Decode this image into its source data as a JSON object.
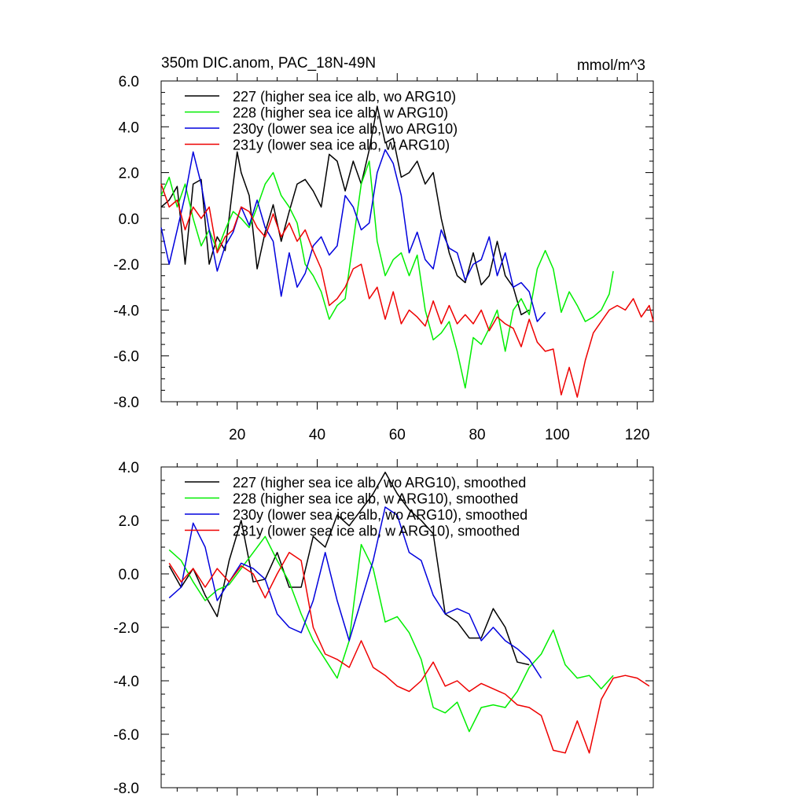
{
  "chart_data": [
    {
      "type": "line",
      "title": "350m DIC.anom, PAC_18N-49N",
      "units": "mmol/m^3",
      "xlim": [
        1,
        124
      ],
      "ylim": [
        -8,
        6
      ],
      "xticks": [
        20,
        40,
        60,
        80,
        100,
        120
      ],
      "yticks": [
        -8,
        -6,
        -4,
        -2,
        0,
        2,
        4,
        6
      ],
      "xtick_labels": [
        "20",
        "40",
        "60",
        "80",
        "100",
        "120"
      ],
      "ytick_labels": [
        "-8.0",
        "-6.0",
        "-4.0",
        "-2.0",
        "0.0",
        "2.0",
        "4.0",
        "6.0"
      ],
      "legend_position": "top-left",
      "series": [
        {
          "name": "227 (higher sea ice alb, wo ARG10)",
          "color": "#000000",
          "x": [
            1,
            3,
            5,
            7,
            9,
            11,
            13,
            15,
            17,
            19,
            20,
            21,
            23,
            25,
            27,
            29,
            31,
            33,
            35,
            37,
            39,
            41,
            43,
            45,
            47,
            49,
            51,
            53,
            55,
            57,
            59,
            61,
            63,
            65,
            67,
            69,
            71,
            73,
            75,
            77,
            79,
            81,
            83,
            85,
            87,
            89,
            91,
            93
          ],
          "y": [
            0.5,
            0.8,
            1.4,
            -2.0,
            1.5,
            1.7,
            -2.0,
            -0.8,
            -1.4,
            1.5,
            2.9,
            2.0,
            1.0,
            -2.2,
            -0.6,
            0.6,
            -1.0,
            0.3,
            1.5,
            1.7,
            1.2,
            0.5,
            2.8,
            2.5,
            1.2,
            2.5,
            1.5,
            3.0,
            4.9,
            3.3,
            3.5,
            1.8,
            2.0,
            2.5,
            1.5,
            2.0,
            0.0,
            -1.5,
            -2.5,
            -2.8,
            -1.5,
            -2.9,
            -2.5,
            -1.0,
            -2.5,
            -3.0,
            -4.2,
            -4.0
          ]
        },
        {
          "name": "228 (higher sea ice alb, w ARG10)",
          "color": "#00ee00",
          "x": [
            1,
            3,
            5,
            7,
            9,
            11,
            13,
            15,
            17,
            19,
            21,
            23,
            25,
            27,
            29,
            31,
            33,
            35,
            37,
            39,
            41,
            43,
            45,
            47,
            49,
            51,
            53,
            55,
            57,
            59,
            61,
            63,
            65,
            67,
            69,
            71,
            73,
            75,
            77,
            79,
            81,
            83,
            85,
            87,
            89,
            91,
            93,
            95,
            97,
            99,
            101,
            103,
            105,
            107,
            109,
            111,
            113,
            114
          ],
          "y": [
            1.0,
            1.8,
            0.5,
            1.5,
            0.0,
            -1.2,
            -0.5,
            -1.4,
            -0.5,
            0.3,
            0.0,
            -0.4,
            0.5,
            1.5,
            2.0,
            1.0,
            0.5,
            -0.2,
            -2.0,
            -2.5,
            -3.2,
            -4.4,
            -3.8,
            -3.5,
            -1.0,
            1.5,
            2.5,
            -1.0,
            -2.5,
            -1.8,
            -1.5,
            -2.5,
            -1.6,
            -4.0,
            -5.3,
            -5.0,
            -4.5,
            -5.8,
            -7.4,
            -5.2,
            -5.5,
            -4.8,
            -4.0,
            -5.8,
            -4.0,
            -3.5,
            -4.2,
            -2.2,
            -1.4,
            -2.2,
            -4.1,
            -3.2,
            -3.8,
            -4.5,
            -4.3,
            -4.0,
            -3.3,
            -2.3
          ]
        },
        {
          "name": "230y (lower sea ice alb, wo ARG10)",
          "color": "#0000dd",
          "x": [
            1,
            3,
            5,
            7,
            9,
            11,
            13,
            15,
            17,
            19,
            21,
            23,
            25,
            27,
            29,
            31,
            33,
            35,
            37,
            39,
            41,
            43,
            45,
            47,
            49,
            51,
            53,
            55,
            57,
            59,
            61,
            63,
            65,
            67,
            69,
            71,
            73,
            75,
            77,
            79,
            81,
            83,
            85,
            87,
            89,
            91,
            93,
            95,
            97
          ],
          "y": [
            -0.4,
            -2.0,
            -0.5,
            1.0,
            2.9,
            1.5,
            -0.5,
            -2.3,
            -1.2,
            -0.6,
            0.5,
            -0.3,
            0.8,
            -0.4,
            -1.0,
            -3.4,
            -1.5,
            -3.0,
            -2.4,
            -1.2,
            -0.8,
            -1.6,
            -1.2,
            1.0,
            0.5,
            -0.5,
            -0.2,
            2.0,
            3.0,
            2.4,
            1.0,
            -1.5,
            -0.6,
            -1.8,
            -2.2,
            -0.5,
            -1.3,
            -1.5,
            -2.7,
            -2.0,
            -1.8,
            -0.8,
            -2.5,
            -1.5,
            -3.0,
            -2.8,
            -3.2,
            -4.5,
            -4.1
          ]
        },
        {
          "name": "231y (lower sea ice alb, w ARG10)",
          "color": "#ee0000",
          "x": [
            1,
            3,
            5,
            7,
            9,
            11,
            13,
            15,
            17,
            19,
            21,
            23,
            25,
            27,
            29,
            31,
            33,
            35,
            37,
            39,
            41,
            43,
            45,
            47,
            49,
            51,
            53,
            55,
            57,
            59,
            61,
            63,
            65,
            67,
            69,
            71,
            73,
            75,
            77,
            79,
            81,
            83,
            85,
            87,
            89,
            91,
            93,
            95,
            97,
            99,
            101,
            103,
            105,
            107,
            109,
            111,
            113,
            115,
            117,
            119,
            121,
            123,
            124
          ],
          "y": [
            1.5,
            0.5,
            0.8,
            -0.5,
            0.5,
            0.0,
            0.5,
            -1.5,
            -0.8,
            -0.5,
            0.5,
            0.3,
            -0.4,
            -0.8,
            0.2,
            -0.8,
            -0.2,
            -1.0,
            -0.5,
            -1.4,
            -2.2,
            -3.8,
            -3.5,
            -3.0,
            -2.2,
            -2.0,
            -3.5,
            -3.0,
            -4.4,
            -3.2,
            -4.6,
            -4.0,
            -4.3,
            -4.7,
            -3.6,
            -4.6,
            -3.8,
            -4.6,
            -4.2,
            -4.6,
            -4.0,
            -4.9,
            -4.3,
            -4.6,
            -4.8,
            -5.6,
            -4.4,
            -5.4,
            -5.8,
            -5.7,
            -7.7,
            -6.5,
            -7.8,
            -6.2,
            -5.0,
            -4.5,
            -4.0,
            -3.8,
            -4.0,
            -3.5,
            -4.3,
            -3.8,
            -4.5
          ]
        }
      ]
    },
    {
      "type": "line",
      "title": "",
      "units": "",
      "xlim": [
        1,
        124
      ],
      "ylim": [
        -8,
        4
      ],
      "xticks": [
        20,
        40,
        60,
        80,
        100,
        120
      ],
      "yticks": [
        -8,
        -6,
        -4,
        -2,
        0,
        2,
        4
      ],
      "xtick_labels": [],
      "ytick_labels": [
        "-8.0",
        "-6.0",
        "-4.0",
        "-2.0",
        "0.0",
        "2.0",
        "4.0"
      ],
      "legend_position": "top-left",
      "series": [
        {
          "name": "227 (higher sea ice alb, wo ARG10), smoothed",
          "color": "#000000",
          "x": [
            3,
            6,
            9,
            12,
            15,
            18,
            21,
            24,
            27,
            30,
            33,
            36,
            39,
            42,
            45,
            48,
            51,
            54,
            57,
            60,
            63,
            66,
            69,
            72,
            75,
            78,
            81,
            84,
            87,
            90,
            93
          ],
          "y": [
            0.3,
            -0.5,
            0.2,
            -0.8,
            -1.6,
            0.5,
            2.0,
            -0.3,
            -0.2,
            0.8,
            -0.5,
            -0.5,
            1.4,
            1.0,
            2.2,
            1.8,
            2.4,
            3.0,
            3.8,
            3.0,
            2.4,
            2.0,
            1.5,
            -1.5,
            -1.8,
            -2.4,
            -2.4,
            -1.3,
            -2.0,
            -3.3,
            -3.4
          ]
        },
        {
          "name": "228 (higher sea ice alb, w ARG10), smoothed",
          "color": "#00ee00",
          "x": [
            3,
            6,
            9,
            12,
            15,
            18,
            21,
            24,
            27,
            30,
            33,
            36,
            39,
            42,
            45,
            48,
            51,
            54,
            57,
            60,
            63,
            66,
            69,
            72,
            75,
            78,
            81,
            84,
            87,
            90,
            93,
            96,
            99,
            102,
            105,
            108,
            111,
            114
          ],
          "y": [
            0.9,
            0.5,
            -0.3,
            -1.0,
            -0.6,
            -0.4,
            0.2,
            0.8,
            1.4,
            0.5,
            -0.3,
            -1.5,
            -2.5,
            -3.2,
            -3.9,
            -2.5,
            1.1,
            0.2,
            -1.8,
            -1.6,
            -2.2,
            -3.2,
            -5.0,
            -5.2,
            -4.8,
            -5.9,
            -5.0,
            -4.9,
            -5.0,
            -4.4,
            -3.5,
            -3.0,
            -2.1,
            -3.4,
            -3.9,
            -3.8,
            -4.3,
            -3.8
          ]
        },
        {
          "name": "230y (lower sea ice alb, wo ARG10), smoothed",
          "color": "#0000dd",
          "x": [
            3,
            6,
            9,
            12,
            15,
            18,
            21,
            24,
            27,
            30,
            33,
            36,
            39,
            42,
            45,
            48,
            51,
            54,
            57,
            60,
            63,
            66,
            69,
            72,
            75,
            78,
            81,
            84,
            87,
            90,
            93,
            96
          ],
          "y": [
            -0.9,
            -0.5,
            1.9,
            1.0,
            -1.0,
            -0.3,
            0.4,
            0.2,
            -0.2,
            -1.5,
            -2.0,
            -2.2,
            -1.0,
            0.8,
            -1.0,
            -2.5,
            -1.0,
            0.5,
            2.5,
            2.2,
            0.8,
            0.5,
            -0.8,
            -1.5,
            -1.3,
            -1.5,
            -2.5,
            -2.0,
            -2.5,
            -2.8,
            -3.2,
            -3.9
          ]
        },
        {
          "name": "231y (lower sea ice alb, w ARG10), smoothed",
          "color": "#ee0000",
          "x": [
            3,
            6,
            9,
            12,
            15,
            18,
            21,
            24,
            27,
            30,
            33,
            36,
            39,
            42,
            45,
            48,
            51,
            54,
            57,
            60,
            63,
            66,
            69,
            72,
            75,
            78,
            81,
            84,
            87,
            90,
            93,
            96,
            99,
            102,
            105,
            108,
            111,
            114,
            117,
            120,
            123
          ],
          "y": [
            0.4,
            -0.3,
            0.2,
            -0.5,
            0.2,
            -0.3,
            0.3,
            0.0,
            -0.9,
            0.0,
            0.8,
            0.5,
            -2.0,
            -3.0,
            -3.2,
            -3.5,
            -2.5,
            -3.5,
            -3.8,
            -4.2,
            -4.4,
            -4.0,
            -3.3,
            -4.2,
            -4.0,
            -4.4,
            -4.1,
            -4.3,
            -4.5,
            -4.9,
            -5.0,
            -5.3,
            -6.6,
            -6.7,
            -5.5,
            -6.7,
            -4.7,
            -3.9,
            -3.8,
            -3.9,
            -4.2
          ]
        }
      ]
    }
  ]
}
